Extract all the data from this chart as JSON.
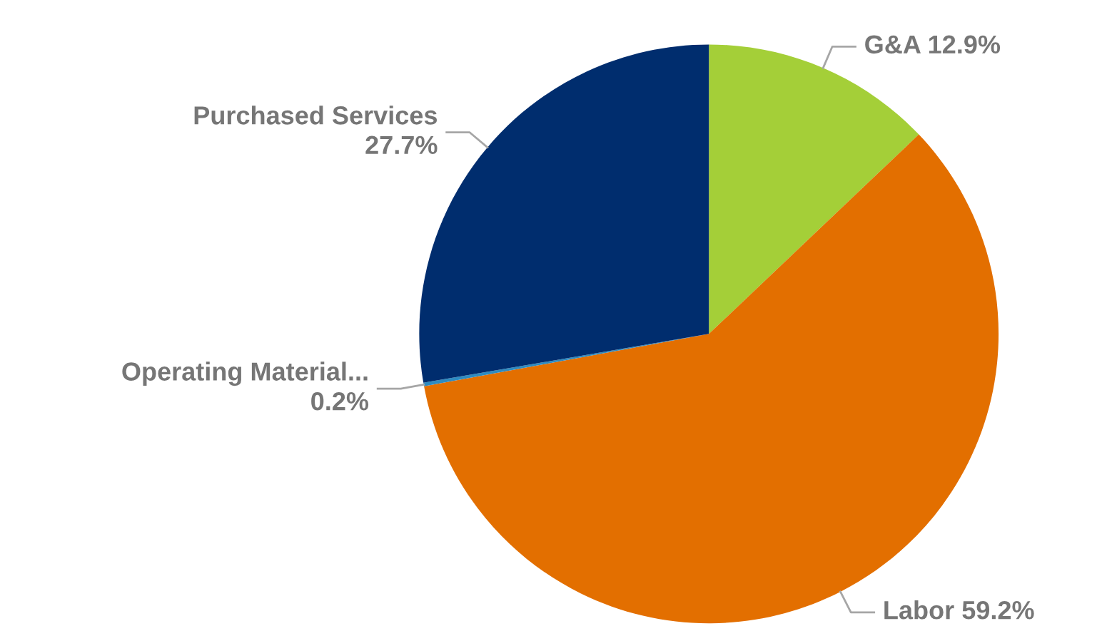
{
  "chart_data": {
    "type": "pie",
    "categories": [
      "G&A",
      "Labor",
      "Operating Material...",
      "Purchased Services"
    ],
    "values": [
      12.9,
      59.2,
      0.2,
      27.7
    ],
    "value_labels": [
      "12.9%",
      "59.2%",
      "0.2%",
      "27.7%"
    ],
    "colors": [
      "#a4cf38",
      "#e36f00",
      "#2e8bc0",
      "#002d6e"
    ],
    "legend": false
  }
}
